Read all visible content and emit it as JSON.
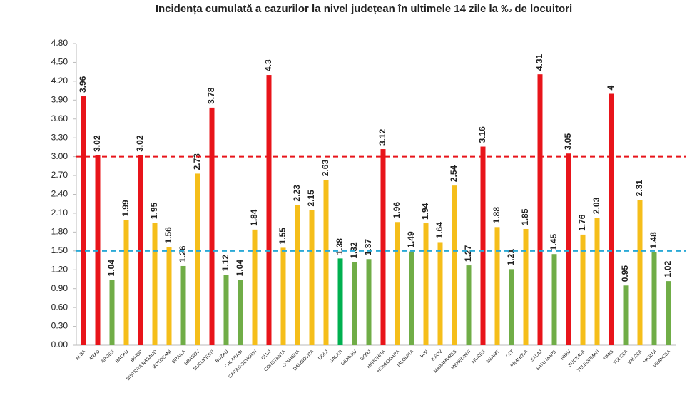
{
  "chart_data": {
    "type": "bar",
    "title": "Incidența cumulată a cazurilor la nivel județean în ultimele 14 zile la ‰ de locuitori",
    "categories": [
      "ALBA",
      "ARAD",
      "ARGES",
      "BACAU",
      "BIHOR",
      "BISTRITA NASAUD",
      "BOTOSANI",
      "BRAILA",
      "BRASOV",
      "BUCURESTI",
      "BUZAU",
      "CALARASI",
      "CARAS-SEVERIN",
      "CLUJ",
      "CONSTANTA",
      "COVASNA",
      "DAMBOVITA",
      "DOLJ",
      "GALATI",
      "GIURGIU",
      "GORJ",
      "HARGHITA",
      "HUNEDOARA",
      "IALOMITA",
      "IASI",
      "ILFOV",
      "MARAMURES",
      "MEHEDINTI",
      "MURES",
      "NEAMT",
      "OLT",
      "PRAHOVA",
      "SALAJ",
      "SATU MARE",
      "SIBIU",
      "SUCEAVA",
      "TELEORMAN",
      "TIMIS",
      "TULCEA",
      "VALCEA",
      "VASLUI",
      "VRANCEA"
    ],
    "values": [
      3.96,
      3.02,
      1.04,
      1.99,
      3.02,
      1.95,
      1.56,
      1.26,
      2.73,
      3.78,
      1.12,
      1.04,
      1.84,
      4.3,
      1.55,
      2.23,
      2.15,
      2.63,
      1.38,
      1.32,
      1.37,
      3.12,
      1.96,
      1.49,
      1.94,
      1.64,
      2.54,
      1.27,
      3.16,
      1.88,
      1.21,
      1.85,
      4.31,
      1.45,
      3.05,
      1.76,
      2.03,
      4,
      0.95,
      2.31,
      1.48,
      1.02
    ],
    "colors": [
      "#e8141a",
      "#e8141a",
      "#70ad47",
      "#f5be1a",
      "#e8141a",
      "#f5be1a",
      "#f5be1a",
      "#70ad47",
      "#f5be1a",
      "#e8141a",
      "#70ad47",
      "#70ad47",
      "#f5be1a",
      "#e8141a",
      "#f5be1a",
      "#f5be1a",
      "#f5be1a",
      "#f5be1a",
      "#00b050",
      "#70ad47",
      "#70ad47",
      "#e8141a",
      "#f5be1a",
      "#70ad47",
      "#f5be1a",
      "#f5be1a",
      "#f5be1a",
      "#70ad47",
      "#e8141a",
      "#f5be1a",
      "#70ad47",
      "#f5be1a",
      "#e8141a",
      "#70ad47",
      "#e8141a",
      "#f5be1a",
      "#f5be1a",
      "#e8141a",
      "#70ad47",
      "#f5be1a",
      "#70ad47",
      "#70ad47"
    ],
    "ylim": [
      0,
      4.8
    ],
    "yticks": [
      {
        "value": 0,
        "label": "0.00"
      },
      {
        "value": 0.3,
        "label": "0.30"
      },
      {
        "value": 0.6,
        "label": "0.60"
      },
      {
        "value": 0.9,
        "label": "0.90"
      },
      {
        "value": 1.2,
        "label": "1.20"
      },
      {
        "value": 1.5,
        "label": "1.50"
      },
      {
        "value": 1.8,
        "label": "1.80"
      },
      {
        "value": 2.1,
        "label": "2.10"
      },
      {
        "value": 2.4,
        "label": "2.40"
      },
      {
        "value": 2.7,
        "label": "2.70"
      },
      {
        "value": 3,
        "label": "3.00"
      },
      {
        "value": 3.3,
        "label": "3.30"
      },
      {
        "value": 3.6,
        "label": "3.60"
      },
      {
        "value": 3.9,
        "label": "3.90"
      },
      {
        "value": 4.2,
        "label": "4.20"
      },
      {
        "value": 4.5,
        "label": "4.50"
      },
      {
        "value": 4.8,
        "label": "4.80"
      }
    ],
    "reference_lines": [
      {
        "value": 3,
        "color": "#e8141a"
      },
      {
        "value": 1.5,
        "color": "#2aa9d6"
      }
    ]
  }
}
